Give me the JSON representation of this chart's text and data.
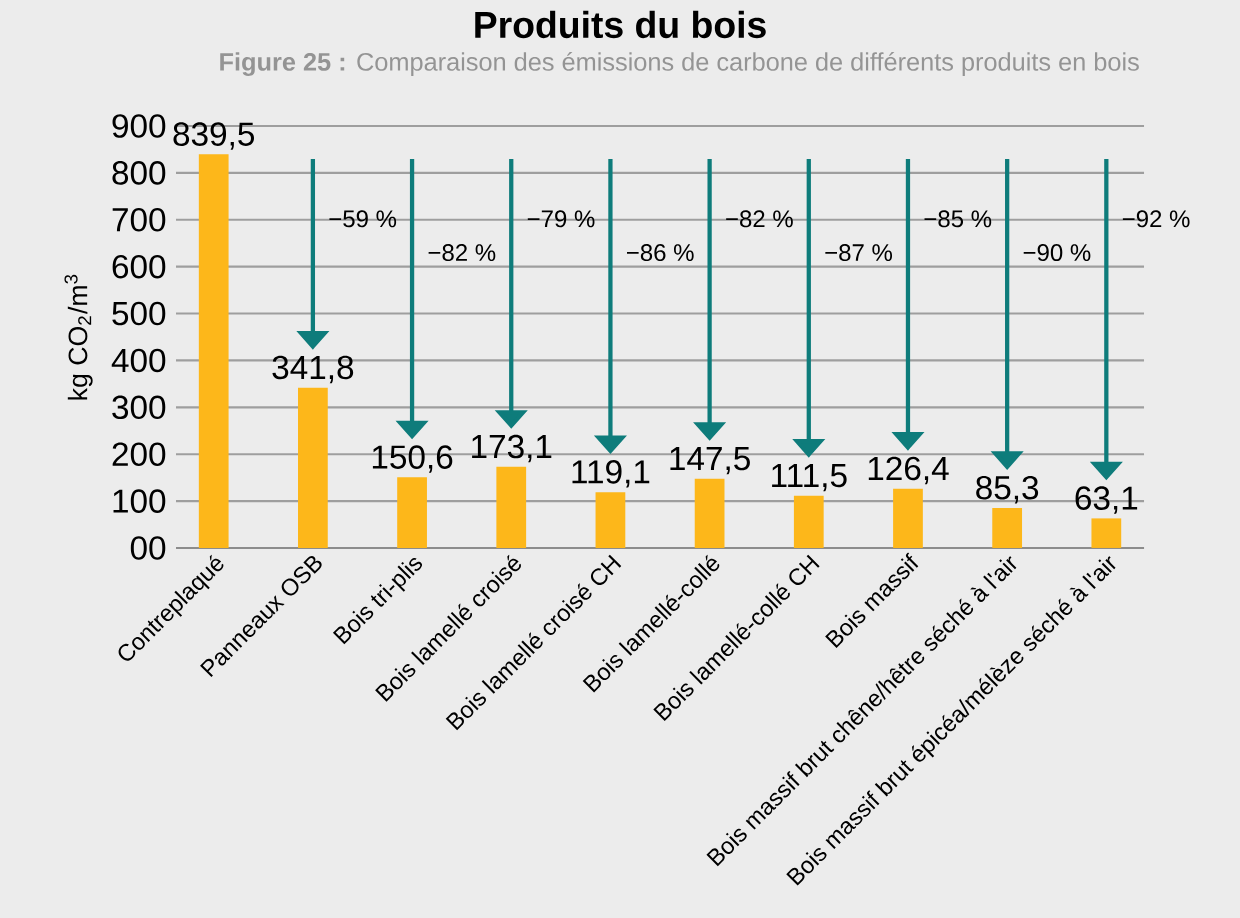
{
  "chart_data": {
    "type": "bar",
    "title": "Produits du bois",
    "subtitle": "**Figure 25 :** Comparaison des émissions de carbone de différents produits en bois",
    "ylabel": "kg CO$_{2}$/m$^{3}$",
    "categories": [
      "Contreplaqué",
      "Panneaux OSB",
      "Bois tri-plis",
      "Bois lamellé croisé",
      "Bois lamellé croisé CH",
      "Bois lamellé-collé",
      "Bois lamellé-collé CH",
      "Bois massif",
      "Bois massif brut chêne/hêtre séché à l'air",
      "Bois massif brut épicéa/mélèze séché à l'air"
    ],
    "values": [
      839.5,
      341.8,
      150.6,
      173.1,
      119.1,
      147.5,
      111.5,
      126.4,
      85.3,
      63.1
    ],
    "value_labels": [
      "839,5",
      "341,8",
      "150,6",
      "173,1",
      "119,1",
      "147,5",
      "111,5",
      "126,4",
      "85,3",
      "63,1"
    ],
    "color": "#fdb71a",
    "ylim": [
      0,
      900
    ],
    "yticks": [
      {
        "value": 0,
        "label": "00"
      },
      100,
      200,
      300,
      400,
      500,
      600,
      700,
      800,
      900
    ],
    "grid": "y",
    "annotations": [
      "−59 %",
      "−82 %",
      "−79 %",
      "−86 %",
      "−82 %",
      "−87 %",
      "−85 %",
      "−90 %",
      "−92 %"
    ]
  }
}
